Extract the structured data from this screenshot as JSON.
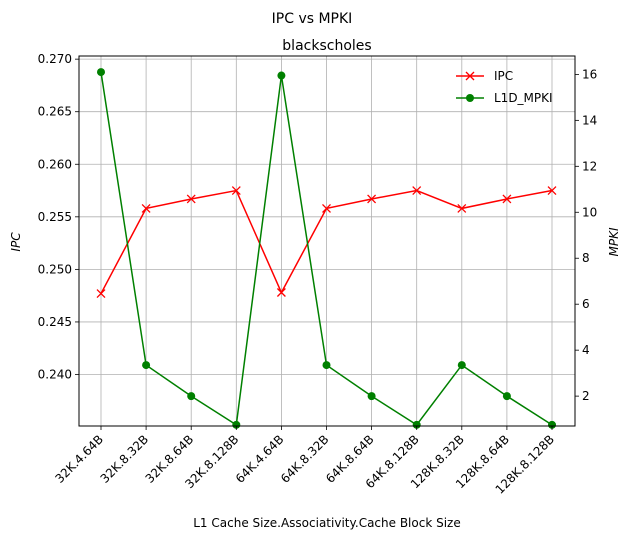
{
  "chart_data": {
    "type": "line",
    "suptitle": "IPC vs MPKI",
    "title": "blackscholes",
    "xlabel": "L1 Cache Size.Associativity.Cache Block Size",
    "ylabel": "IPC",
    "y2label": "MPKI",
    "categories": [
      "32K.4.64B",
      "32K.8.32B",
      "32K.8.64B",
      "32K.8.128B",
      "64K.4.64B",
      "64K.8.32B",
      "64K.8.64B",
      "64K.8.128B",
      "128K.8.32B",
      "128K.8.64B",
      "128K.8.128B"
    ],
    "ylim": [
      0.2351,
      0.2703
    ],
    "y2lim": [
      0.7,
      16.8
    ],
    "yticks": [
      "0.240",
      "0.245",
      "0.250",
      "0.255",
      "0.260",
      "0.265",
      "0.270"
    ],
    "y2ticks": [
      "2",
      "4",
      "6",
      "8",
      "10",
      "12",
      "14",
      "16"
    ],
    "grid": true,
    "legend_position": "top-right",
    "series": [
      {
        "name": "IPC",
        "axis": "left",
        "color": "#ff0000",
        "marker": "x",
        "values": [
          0.2477,
          0.2558,
          0.2567,
          0.2575,
          0.2478,
          0.2558,
          0.2567,
          0.2575,
          0.2558,
          0.2567,
          0.2575
        ]
      },
      {
        "name": "L1D_MPKI",
        "axis": "right",
        "color": "#008000",
        "marker": "o",
        "values": [
          16.1,
          3.35,
          2.0,
          0.75,
          15.95,
          3.35,
          2.0,
          0.75,
          3.35,
          2.0,
          0.75
        ]
      }
    ]
  }
}
